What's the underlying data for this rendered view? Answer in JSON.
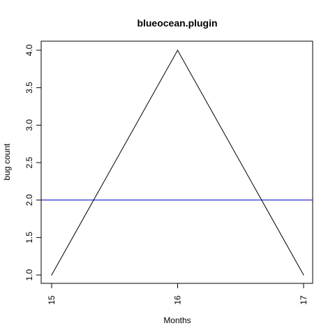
{
  "chart_data": {
    "type": "line",
    "title": "blueocean.plugin",
    "xlabel": "Months",
    "ylabel": "bug count",
    "x": [
      15,
      16,
      17
    ],
    "series": [
      {
        "values": [
          1,
          4,
          1
        ],
        "color": "#000000"
      }
    ],
    "reference_line": {
      "y": 2.0,
      "color": "#0000cc"
    },
    "x_ticks": [
      "15",
      "16",
      "17"
    ],
    "y_ticks": [
      "1.0",
      "1.5",
      "2.0",
      "2.5",
      "3.0",
      "3.5",
      "4.0"
    ],
    "xlim": [
      15,
      17
    ],
    "ylim": [
      1,
      4
    ],
    "grid": false,
    "legend": "none"
  }
}
